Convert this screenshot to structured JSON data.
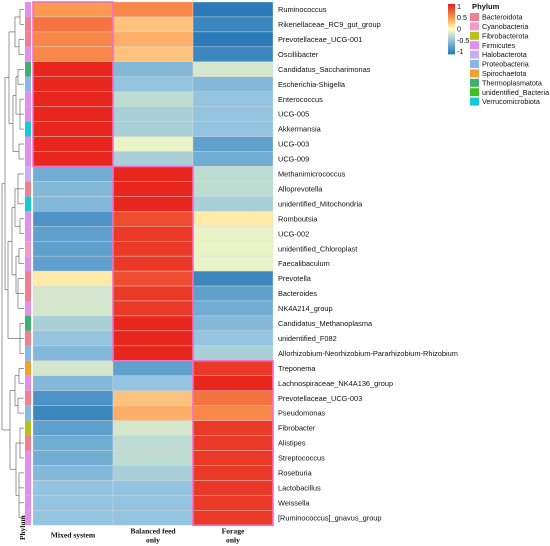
{
  "chart_data": {
    "type": "heatmap",
    "columns": [
      "Mixed system",
      "Balanced feed only",
      "Forage only"
    ],
    "rows": [
      {
        "label": "Ruminococcus",
        "phylum": "Firmicutes",
        "values": [
          0.5,
          0.6,
          -1.1
        ]
      },
      {
        "label": "Rikenellaceae_RC9_gut_group",
        "phylum": "Bacteroidota",
        "values": [
          0.7,
          0.3,
          -1.0
        ]
      },
      {
        "label": "Prevotellaceae_UCG-001",
        "phylum": "Bacteroidota",
        "values": [
          0.6,
          0.4,
          -1.1
        ]
      },
      {
        "label": "Oscillibacter",
        "phylum": "Firmicutes",
        "values": [
          0.6,
          0.3,
          -1.0
        ]
      },
      {
        "label": "Candidatus_Saccharimonas",
        "phylum": "Thermoplasmatota",
        "values": [
          1.1,
          -0.6,
          -0.2
        ]
      },
      {
        "label": "Escherichia-Shigella",
        "phylum": "Proteobacteria",
        "values": [
          1.1,
          -0.5,
          -0.6
        ]
      },
      {
        "label": "Enterococcus",
        "phylum": "Firmicutes",
        "values": [
          1.1,
          -0.3,
          -0.5
        ]
      },
      {
        "label": "UCG-005",
        "phylum": "Firmicutes",
        "values": [
          1.1,
          -0.4,
          -0.5
        ]
      },
      {
        "label": "Akkermansia",
        "phylum": "Verrucomicrobiota",
        "values": [
          1.1,
          -0.4,
          -0.5
        ]
      },
      {
        "label": "UCG-003",
        "phylum": "Firmicutes",
        "values": [
          1.1,
          -0.1,
          -0.8
        ]
      },
      {
        "label": "UCG-009",
        "phylum": "Firmicutes",
        "values": [
          1.1,
          -0.4,
          -0.7
        ]
      },
      {
        "label": "Methanimicrococcus",
        "phylum": "Halobacterota",
        "values": [
          -0.7,
          1.1,
          -0.3
        ]
      },
      {
        "label": "Alloprevotella",
        "phylum": "Bacteroidota",
        "values": [
          -0.6,
          1.1,
          -0.3
        ]
      },
      {
        "label": "unidentified_Mitochondria",
        "phylum": "Verrucomicrobiota",
        "values": [
          -0.6,
          1.1,
          -0.4
        ]
      },
      {
        "label": "Romboutsia",
        "phylum": "Firmicutes",
        "values": [
          -0.9,
          0.9,
          0.1
        ]
      },
      {
        "label": "UCG-002",
        "phylum": "Firmicutes",
        "values": [
          -0.8,
          1.0,
          -0.1
        ]
      },
      {
        "label": "unidentified_Chloroplast",
        "phylum": "Cyanobacteria",
        "values": [
          -0.8,
          1.0,
          -0.1
        ]
      },
      {
        "label": "Faecalibaculum",
        "phylum": "Firmicutes",
        "values": [
          -0.8,
          1.0,
          -0.1
        ]
      },
      {
        "label": "Prevotella",
        "phylum": "Bacteroidota",
        "values": [
          0.1,
          0.9,
          -1.0
        ]
      },
      {
        "label": "Bacteroides",
        "phylum": "Bacteroidota",
        "values": [
          -0.2,
          1.0,
          -0.8
        ]
      },
      {
        "label": "NK4A214_group",
        "phylum": "Firmicutes",
        "values": [
          -0.2,
          1.0,
          -0.7
        ]
      },
      {
        "label": "Candidatus_Methanoplasma",
        "phylum": "Thermoplasmatota",
        "values": [
          -0.4,
          1.1,
          -0.6
        ]
      },
      {
        "label": "unidentified_F082",
        "phylum": "Bacteroidota",
        "values": [
          -0.5,
          1.1,
          -0.5
        ]
      },
      {
        "label": "Allorhizobium-Neorhizobium-Pararhizobium-Rhizobium",
        "phylum": "Proteobacteria",
        "values": [
          -0.6,
          1.1,
          -0.4
        ]
      },
      {
        "label": "Treponema",
        "phylum": "Spirochaetota",
        "values": [
          -0.2,
          -0.8,
          1.0
        ]
      },
      {
        "label": "Lachnospiraceae_NK4A136_group",
        "phylum": "Firmicutes",
        "values": [
          -0.6,
          -0.5,
          1.1
        ]
      },
      {
        "label": "Prevotellaceae_UCG-003",
        "phylum": "Bacteroidota",
        "values": [
          -0.9,
          0.3,
          0.7
        ]
      },
      {
        "label": "Pseudomonas",
        "phylum": "Proteobacteria",
        "values": [
          -1.0,
          0.4,
          0.6
        ]
      },
      {
        "label": "Fibrobacter",
        "phylum": "Fibrobacterota",
        "values": [
          -0.8,
          -0.2,
          1.0
        ]
      },
      {
        "label": "Alistipes",
        "phylum": "Bacteroidota",
        "values": [
          -0.7,
          -0.3,
          1.0
        ]
      },
      {
        "label": "Streptococcus",
        "phylum": "Firmicutes",
        "values": [
          -0.7,
          -0.3,
          1.0
        ]
      },
      {
        "label": "Roseburia",
        "phylum": "Firmicutes",
        "values": [
          -0.6,
          -0.4,
          1.0
        ]
      },
      {
        "label": "Lactobacillus",
        "phylum": "Firmicutes",
        "values": [
          -0.5,
          -0.5,
          1.0
        ]
      },
      {
        "label": "Weissella",
        "phylum": "Firmicutes",
        "values": [
          -0.5,
          -0.5,
          1.0
        ]
      },
      {
        "label": "[Ruminococcus]_gnavus_group",
        "phylum": "Firmicutes",
        "values": [
          -0.5,
          -0.5,
          1.0
        ]
      }
    ],
    "column_clusters": [
      {
        "rows": [
          0,
          10
        ],
        "column": 0
      },
      {
        "rows": [
          11,
          23
        ],
        "column": 1
      },
      {
        "rows": [
          24,
          34
        ],
        "column": 2
      }
    ],
    "color_scale": {
      "ticks": [
        "1",
        "0.5",
        "0",
        "-0.5",
        "-1"
      ],
      "stops": [
        {
          "v": -1.1,
          "color": "#2b7bb9"
        },
        {
          "v": -0.5,
          "color": "#94c4df"
        },
        {
          "v": 0.0,
          "color": "#ffffbf"
        },
        {
          "v": 0.5,
          "color": "#fc9a52"
        },
        {
          "v": 1.1,
          "color": "#e8261e"
        }
      ]
    },
    "phylum_axis_label": "Phylum",
    "legend": {
      "title": "Phylum",
      "items": [
        {
          "name": "Bacteroidota",
          "color": "#f08090"
        },
        {
          "name": "Cyanobacteria",
          "color": "#f09ac8"
        },
        {
          "name": "Fibrobacterota",
          "color": "#b8c020"
        },
        {
          "name": "Firmicutes",
          "color": "#e090e8"
        },
        {
          "name": "Halobacterota",
          "color": "#c8aef0"
        },
        {
          "name": "Proteobacteria",
          "color": "#88b8e8"
        },
        {
          "name": "Spirochaetota",
          "color": "#f0a030"
        },
        {
          "name": "Thermoplasmatota",
          "color": "#40b070"
        },
        {
          "name": "unidentified_Bacteria",
          "color": "#40c020"
        },
        {
          "name": "Verrucomicrobiota",
          "color": "#18c8d8"
        }
      ]
    }
  }
}
